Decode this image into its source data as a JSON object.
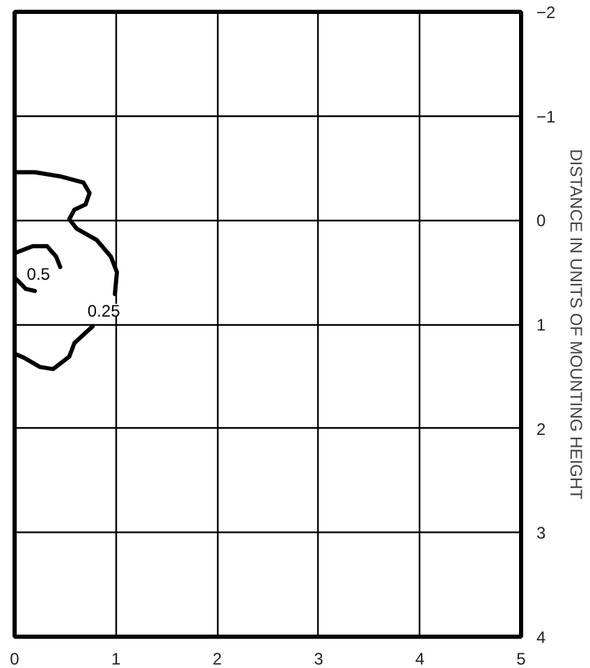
{
  "chart_data": {
    "type": "line",
    "ylabel": "DISTANCE IN UNITS OF MOUNTING HEIGHT",
    "xlim": [
      0,
      5
    ],
    "ylim": [
      4,
      -2
    ],
    "xticks": [
      0,
      1,
      2,
      3,
      4,
      5
    ],
    "yticks": [
      -2,
      -1,
      0,
      1,
      2,
      3,
      4
    ],
    "grid": true,
    "line_style": "solid",
    "marker": "none",
    "series": [
      {
        "name": "0.25",
        "color": "#000000",
        "x": [
          0.02,
          0.2,
          0.45,
          0.68,
          0.74,
          0.7,
          0.59,
          0.54,
          0.61,
          0.81,
          0.95,
          1.01,
          0.99,
          null,
          0.77,
          0.59,
          0.54,
          0.38,
          0.25,
          0.09,
          0.02
        ],
        "values": [
          -0.46,
          -0.46,
          -0.42,
          -0.36,
          -0.26,
          -0.15,
          -0.1,
          -0.01,
          0.08,
          0.19,
          0.35,
          0.5,
          0.71,
          null,
          1.02,
          1.18,
          1.31,
          1.43,
          1.41,
          1.32,
          1.29
        ]
      },
      {
        "name": "0.5",
        "color": "#000000",
        "x": [
          0.02,
          0.18,
          0.32,
          0.41,
          0.45,
          null,
          0.02,
          0.11,
          0.2
        ],
        "values": [
          0.31,
          0.25,
          0.25,
          0.35,
          0.45,
          null,
          0.57,
          0.66,
          0.68
        ]
      }
    ]
  }
}
